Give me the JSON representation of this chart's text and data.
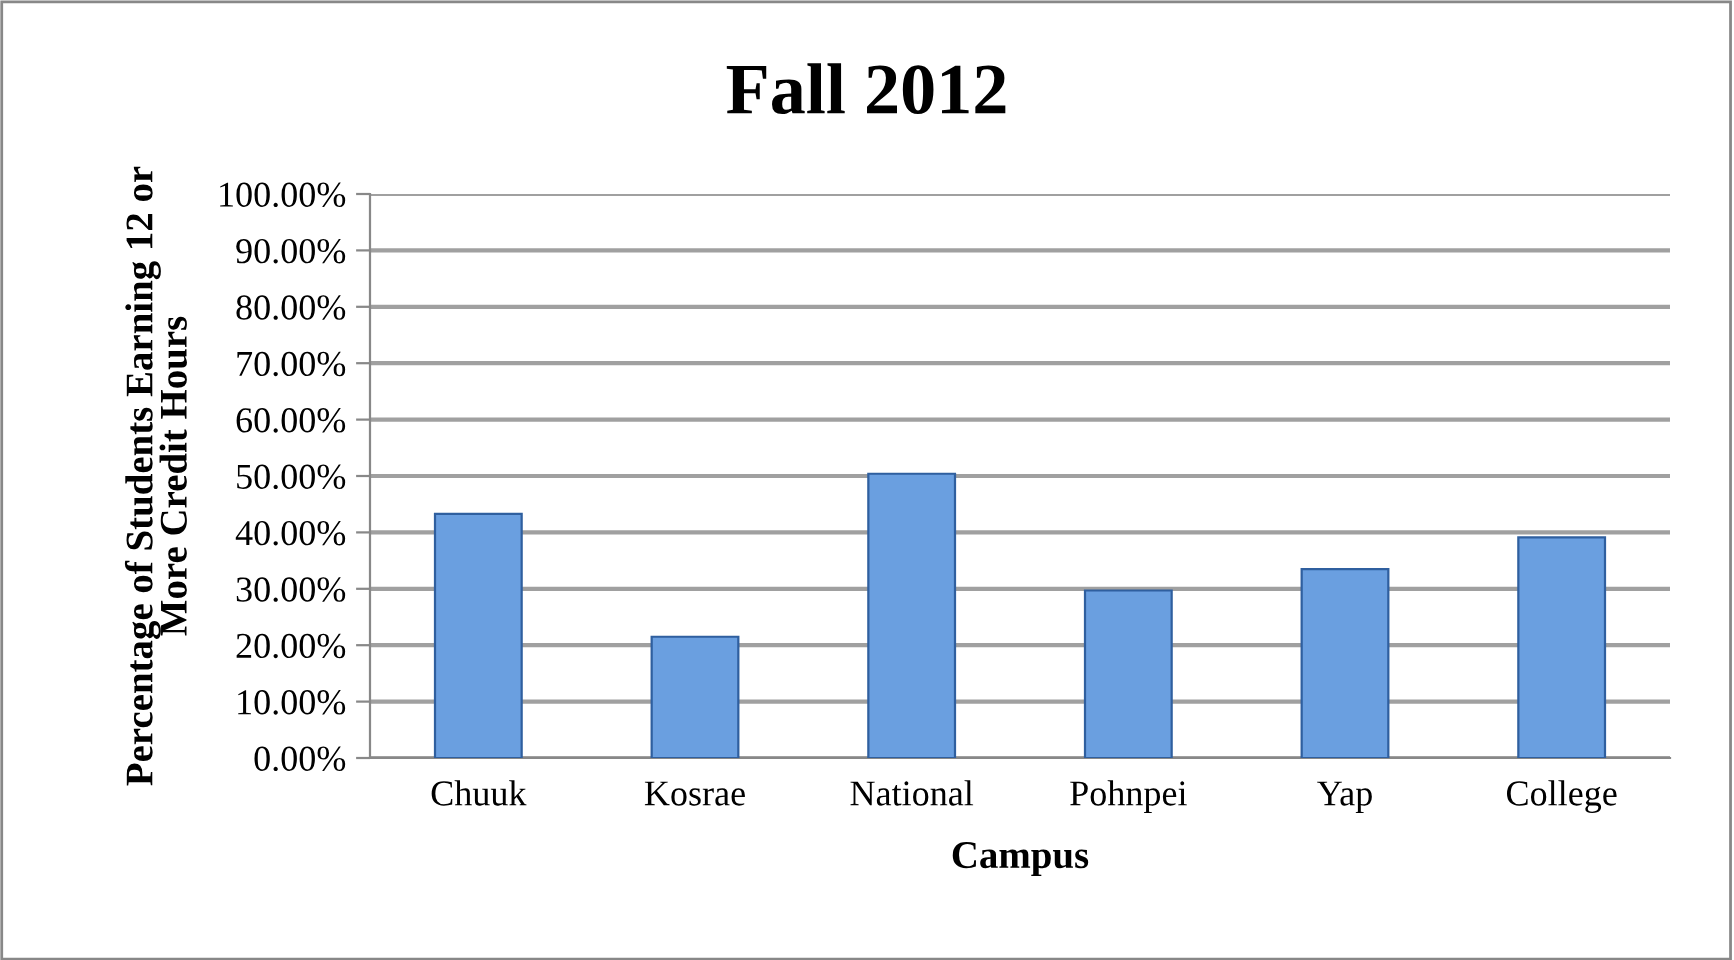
{
  "chart_data": {
    "type": "bar",
    "title": "Fall 2012",
    "xlabel": "Campus",
    "ylabel": "Percentage of Students Earning 12 or\nMore Credit Hours",
    "categories": [
      "Chuuk",
      "Kosrae",
      "National",
      "Pohnpei",
      "Yap",
      "College"
    ],
    "values": [
      43.3,
      21.5,
      50.4,
      29.7,
      33.5,
      39.1
    ],
    "color": "#6a9fe0",
    "ylim": [
      0,
      100
    ],
    "yticks": [
      {
        "value": 0,
        "label": "0.00%"
      },
      {
        "value": 10,
        "label": "10.00%"
      },
      {
        "value": 20,
        "label": "20.00%"
      },
      {
        "value": 30,
        "label": "30.00%"
      },
      {
        "value": 40,
        "label": "40.00%"
      },
      {
        "value": 50,
        "label": "50.00%"
      },
      {
        "value": 60,
        "label": "60.00%"
      },
      {
        "value": 70,
        "label": "70.00%"
      },
      {
        "value": 80,
        "label": "80.00%"
      },
      {
        "value": 90,
        "label": "90.00%"
      },
      {
        "value": 100,
        "label": "100.00%"
      }
    ],
    "grid": "y",
    "legend": false
  }
}
